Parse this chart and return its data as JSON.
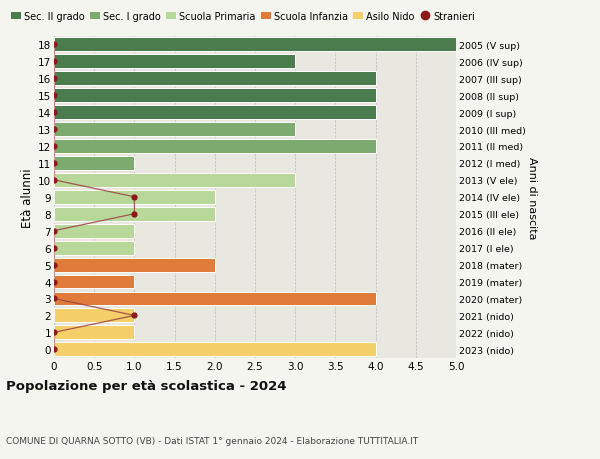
{
  "ages": [
    18,
    17,
    16,
    15,
    14,
    13,
    12,
    11,
    10,
    9,
    8,
    7,
    6,
    5,
    4,
    3,
    2,
    1,
    0
  ],
  "right_labels": [
    "2005 (V sup)",
    "2006 (IV sup)",
    "2007 (III sup)",
    "2008 (II sup)",
    "2009 (I sup)",
    "2010 (III med)",
    "2011 (II med)",
    "2012 (I med)",
    "2013 (V ele)",
    "2014 (IV ele)",
    "2015 (III ele)",
    "2016 (II ele)",
    "2017 (I ele)",
    "2018 (mater)",
    "2019 (mater)",
    "2020 (mater)",
    "2021 (nido)",
    "2022 (nido)",
    "2023 (nido)"
  ],
  "bar_values": [
    5,
    3,
    4,
    4,
    4,
    3,
    4,
    1,
    3,
    2,
    2,
    1,
    1,
    2,
    1,
    4,
    1,
    1,
    4
  ],
  "bar_colors": [
    "#4a7c4e",
    "#4a7c4e",
    "#4a7c4e",
    "#4a7c4e",
    "#4a7c4e",
    "#7daa6e",
    "#7daa6e",
    "#7daa6e",
    "#b8d89a",
    "#b8d89a",
    "#b8d89a",
    "#b8d89a",
    "#b8d89a",
    "#e07b39",
    "#e07b39",
    "#e07b39",
    "#f5d06a",
    "#f5d06a",
    "#f5d06a"
  ],
  "stranieri_values": [
    0,
    0,
    0,
    0,
    0,
    0,
    0,
    0,
    0,
    1,
    1,
    0,
    0,
    0,
    0,
    0,
    1,
    0,
    0
  ],
  "stranieri_color": "#8b1a1a",
  "stranieri_line_color": "#9b4040",
  "legend_labels": [
    "Sec. II grado",
    "Sec. I grado",
    "Scuola Primaria",
    "Scuola Infanzia",
    "Asilo Nido",
    "Stranieri"
  ],
  "legend_colors": [
    "#4a7c4e",
    "#7daa6e",
    "#b8d89a",
    "#e07b39",
    "#f5d06a",
    "#8b1a1a"
  ],
  "ylabel": "Età alunni",
  "right_ylabel": "Anni di nascita",
  "title": "Popolazione per età scolastica - 2024",
  "subtitle": "COMUNE DI QUARNA SOTTO (VB) - Dati ISTAT 1° gennaio 2024 - Elaborazione TUTTITALIA.IT",
  "xlim": [
    0,
    5.0
  ],
  "background_color": "#f5f5f0",
  "bar_background_color": "#e8e8e0",
  "grid_color": "#bbbbbb"
}
